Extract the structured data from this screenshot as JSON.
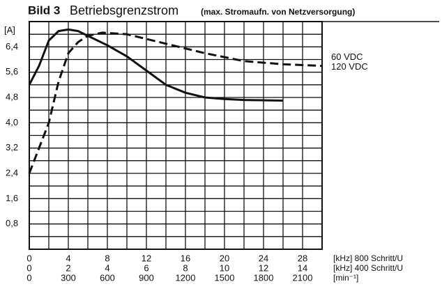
{
  "chart_data": {
    "type": "line",
    "figure_label": "Bild 3",
    "title": "Betriebsgrenzstrom",
    "subtitle": "(max. Stromaufn. von Netzversorgung)",
    "ylabel": "[A]",
    "xlim": [
      0,
      30
    ],
    "ylim": [
      0,
      7.2
    ],
    "yticks": [
      {
        "value": 0.8,
        "label": "0,8"
      },
      {
        "value": 1.6,
        "label": "1,6"
      },
      {
        "value": 2.4,
        "label": "2,4"
      },
      {
        "value": 3.2,
        "label": "3,2"
      },
      {
        "value": 4.0,
        "label": "4,0"
      },
      {
        "value": 4.8,
        "label": "4,8"
      },
      {
        "value": 5.6,
        "label": "5,6"
      },
      {
        "value": 6.4,
        "label": "6,4"
      }
    ],
    "ygrid": [
      0.4,
      0.8,
      1.2,
      1.6,
      2.0,
      2.4,
      2.8,
      3.2,
      3.6,
      4.0,
      4.4,
      4.8,
      5.2,
      5.6,
      6.0,
      6.4,
      6.8
    ],
    "xgrid": [
      2,
      4,
      6,
      8,
      10,
      12,
      14,
      16,
      18,
      20,
      22,
      24,
      26,
      28
    ],
    "x_scales": [
      {
        "label": "[kHz] 800 Schritt/U",
        "lim": [
          0,
          30
        ],
        "ticks": [
          0,
          4,
          8,
          12,
          16,
          20,
          24,
          28
        ]
      },
      {
        "label": "[kHz] 400 Schritt/U",
        "lim": [
          0,
          15
        ],
        "ticks": [
          0,
          2,
          4,
          6,
          8,
          10,
          12,
          14
        ]
      },
      {
        "label": "[min⁻¹]",
        "lim": [
          0,
          2250
        ],
        "ticks": [
          0,
          300,
          600,
          900,
          1200,
          1500,
          1800,
          2100
        ]
      }
    ],
    "series": [
      {
        "name": "120 VDC",
        "color": "#111111",
        "dashed": true,
        "x": [
          0,
          1,
          2,
          3,
          4,
          5,
          6,
          7.5,
          10,
          14,
          18,
          22,
          26,
          30
        ],
        "values": [
          2.4,
          3.2,
          4.0,
          5.3,
          6.2,
          6.55,
          6.75,
          6.85,
          6.8,
          6.5,
          6.2,
          5.95,
          5.85,
          5.8
        ]
      },
      {
        "name": "60 VDC",
        "color": "#111111",
        "dashed": false,
        "x": [
          0,
          1,
          2,
          3,
          4,
          5,
          6,
          8,
          10,
          12,
          14,
          16,
          18,
          20,
          22,
          26
        ],
        "values": [
          5.2,
          5.8,
          6.6,
          6.9,
          6.95,
          6.9,
          6.75,
          6.45,
          6.1,
          5.65,
          5.2,
          4.95,
          4.8,
          4.75,
          4.72,
          4.7
        ]
      }
    ]
  }
}
